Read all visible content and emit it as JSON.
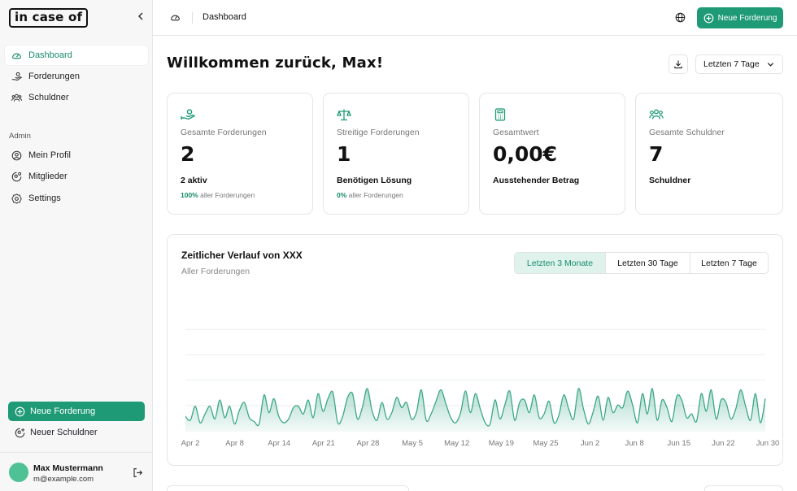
{
  "sidebar": {
    "logo": "in case of",
    "nav": [
      {
        "label": "Dashboard",
        "icon": "dashboard-gauge-icon"
      },
      {
        "label": "Forderungen",
        "icon": "hand-coins-icon"
      },
      {
        "label": "Schuldner",
        "icon": "users-icon"
      }
    ],
    "admin_label": "Admin",
    "admin_nav": [
      {
        "label": "Mein Profil",
        "icon": "user-circle-icon"
      },
      {
        "label": "Mitglieder",
        "icon": "user-cog-icon"
      },
      {
        "label": "Settings",
        "icon": "gear-icon"
      }
    ],
    "new_claim": "Neue Forderung",
    "new_debtor": "Neuer Schuldner",
    "user": {
      "name": "Max Mustermann",
      "email": "m@example.com"
    }
  },
  "topbar": {
    "breadcrumb": "Dashboard",
    "new_claim": "Neue Forderung"
  },
  "main": {
    "welcome": "Willkommen zurück, Max!",
    "range": "Letzten 7 Tage",
    "cards": [
      {
        "title": "Gesamte Forderungen",
        "value": "2",
        "sub": "2 aktiv",
        "foot_pct": "100%",
        "foot_text": " aller Forderungen",
        "icon": "hand-coins-icon"
      },
      {
        "title": "Streitige Forderungen",
        "value": "1",
        "sub": "Benötigen Lösung",
        "foot_pct": "0%",
        "foot_text": " aller Forderungen",
        "icon": "scale-icon"
      },
      {
        "title": "Gesamtwert",
        "value": "0,00€",
        "sub": "Ausstehender Betrag",
        "foot_pct": "",
        "foot_text": "",
        "icon": "calculator-icon"
      },
      {
        "title": "Gesamte Schuldner",
        "value": "7",
        "sub": "Schuldner",
        "foot_pct": "",
        "foot_text": "",
        "icon": "users-icon"
      }
    ],
    "chart": {
      "title": "Zeitlicher Verlauf von XXX",
      "subtitle": "Aller Forderungen",
      "options": [
        "Letzten 3 Monate",
        "Letzten 30 Tage",
        "Letzten 7 Tage"
      ],
      "selected": 0
    }
  },
  "colors": {
    "accent": "#1e9a77",
    "accent_light": "#dff3ec"
  },
  "chart_data": {
    "type": "area",
    "ticks": [
      "Apr 2",
      "Apr 8",
      "Apr 14",
      "Apr 21",
      "Apr 28",
      "May 5",
      "May 12",
      "May 19",
      "May 25",
      "Jun 2",
      "Jun 8",
      "Jun 15",
      "Jun 22",
      "Jun 30"
    ],
    "ylim": [
      0,
      5
    ],
    "grid": true,
    "values": [
      0.6,
      0.45,
      1.0,
      0.35,
      0.7,
      1.0,
      0.5,
      1.25,
      0.55,
      1.0,
      0.3,
      0.85,
      1.15,
      0.55,
      0.4,
      0.3,
      1.45,
      0.75,
      1.3,
      0.6,
      0.35,
      0.5,
      0.95,
      1.0,
      0.7,
      1.25,
      0.55,
      1.5,
      0.8,
      1.3,
      1.55,
      0.35,
      0.6,
      1.35,
      1.5,
      0.5,
      0.95,
      1.7,
      0.8,
      0.45,
      1.15,
      0.5,
      0.75,
      1.35,
      0.95,
      1.15,
      0.5,
      0.75,
      1.65,
      0.45,
      0.7,
      1.2,
      1.65,
      1.1,
      0.55,
      0.35,
      0.75,
      1.6,
      0.75,
      1.5,
      0.9,
      0.35,
      0.3,
      1.25,
      0.5,
      1.05,
      1.6,
      0.45,
      1.15,
      1.25,
      0.75,
      1.45,
      0.55,
      0.7,
      1.2,
      0.35,
      0.65,
      1.45,
      0.9,
      0.5,
      1.7,
      0.9,
      0.3,
      0.8,
      1.4,
      0.45,
      1.35,
      0.75,
      1.05,
      0.95,
      1.6,
      1.05,
      0.35,
      1.5,
      0.7,
      1.7,
      0.45,
      1.25,
      0.95,
      0.4,
      1.4,
      1.25,
      0.55,
      0.7,
      0.4,
      1.5,
      0.8,
      1.65,
      0.5,
      1.25,
      1.15,
      0.5,
      0.9,
      1.65,
      1.0,
      0.45,
      1.5,
      0.35,
      1.3
    ]
  }
}
